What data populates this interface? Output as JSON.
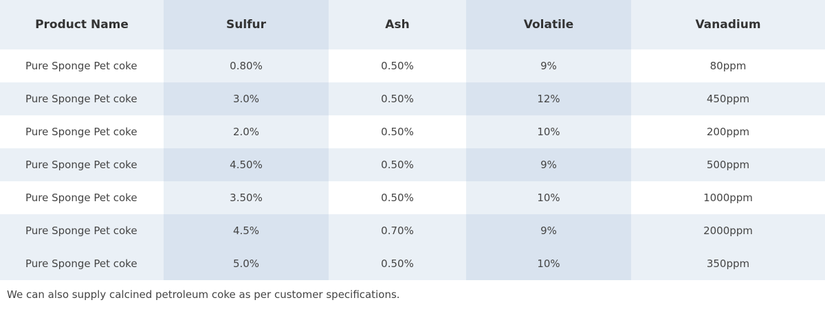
{
  "table": {
    "headers": [
      "Product Name",
      "Sulfur",
      "Ash",
      "Volatile",
      "Vanadium"
    ],
    "rows": [
      [
        "Pure Sponge Pet coke",
        "0.80%",
        "0.50%",
        "9%",
        "80ppm"
      ],
      [
        "Pure Sponge Pet coke",
        "3.0%",
        "0.50%",
        "12%",
        "450ppm"
      ],
      [
        "Pure Sponge Pet coke",
        "2.0%",
        "0.50%",
        "10%",
        "200ppm"
      ],
      [
        "Pure Sponge Pet coke",
        "4.50%",
        "0.50%",
        "9%",
        "500ppm"
      ],
      [
        "Pure Sponge Pet coke",
        "3.50%",
        "0.50%",
        "10%",
        "1000ppm"
      ],
      [
        "Pure Sponge Pet coke",
        "4.5%",
        "0.70%",
        "9%",
        "2000ppm"
      ],
      [
        "Pure Sponge Pet coke",
        "5.0%",
        "0.50%",
        "10%",
        "350ppm"
      ]
    ]
  },
  "note": "We can also supply calcined petroleum coke as per customer specifications.",
  "colors": {
    "header_light": "#eaf0f6",
    "header_dark": "#d9e3ef",
    "text": "#333333"
  }
}
